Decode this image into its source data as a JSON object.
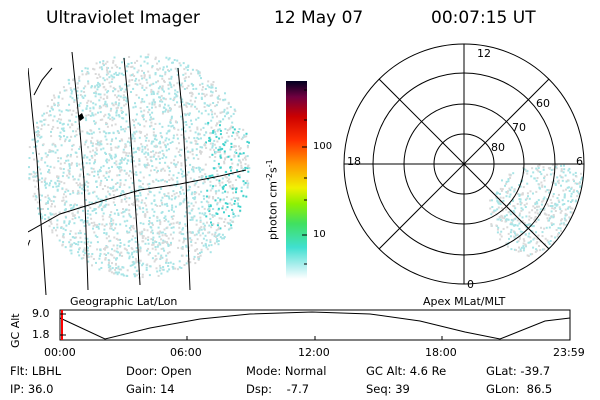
{
  "header": {
    "title": "Ultraviolet Imager",
    "date": "12 May 07",
    "time": "00:07:15 UT"
  },
  "left_panel": {
    "caption": "Geographic Lat/Lon"
  },
  "colorbar": {
    "unit_label": "photon cm",
    "unit_sup1": "-2",
    "unit_mid": "s",
    "unit_sup2": "-1",
    "ticks": [
      "100",
      "10"
    ]
  },
  "polar_panel": {
    "caption": "Apex MLat/MLT",
    "mlt_labels": {
      "top": "12",
      "bottom": "0",
      "left": "18",
      "right": "6"
    },
    "lat_labels": [
      "60",
      "70",
      "80"
    ]
  },
  "timeline": {
    "ylabel": "GC Alt",
    "yticks": [
      "9.0",
      "1.8"
    ],
    "xticks": [
      "00:00",
      "06:00",
      "12:00",
      "18:00",
      "23:59"
    ]
  },
  "info": {
    "row1": [
      "Flt: LBHL",
      "Door: Open",
      "Mode: Normal",
      "GC Alt: 4.6 Re",
      "GLat: -39.7"
    ],
    "row2": [
      "IP: 36.0",
      "Gain: 14",
      "Dsp:    -7.7",
      "Seq: 39",
      "GLon:  86.5"
    ]
  },
  "colors": {
    "dots_main": "#a8e4e6",
    "dots_light": "#d9d9d9",
    "dots_accent": "#3fd2cc",
    "marker": "#ff0000"
  }
}
